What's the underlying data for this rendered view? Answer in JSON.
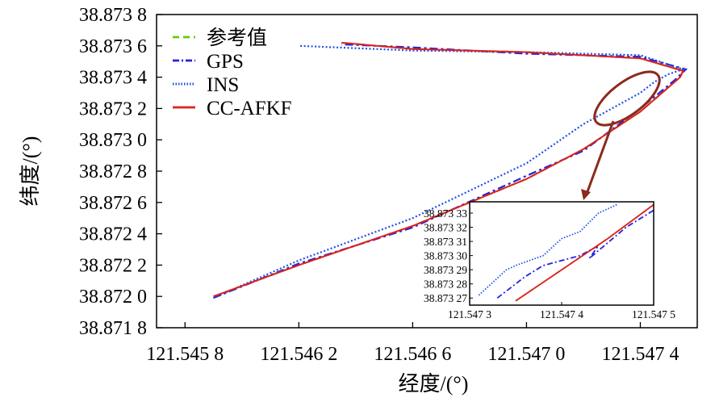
{
  "chart_data": [
    {
      "type": "line",
      "xlabel": "经度/(°)",
      "ylabel": "纬度/(°)",
      "xlim": [
        121.5457,
        121.5476
      ],
      "ylim": [
        38.8718,
        38.8738
      ],
      "xticks": [
        "121.545 8",
        "121.546 2",
        "121.546 6",
        "121.547 0",
        "121.547 4"
      ],
      "xtick_values": [
        121.5458,
        121.5462,
        121.5466,
        121.547,
        121.5474
      ],
      "yticks": [
        "38.871 8",
        "38.872 0",
        "38.872 2",
        "38.872 4",
        "38.872 6",
        "38.872 8",
        "38.873 0",
        "38.873 2",
        "38.873 4",
        "38.873 6",
        "38.873 8"
      ],
      "ytick_values": [
        38.8718,
        38.872,
        38.8722,
        38.8724,
        38.8726,
        38.8728,
        38.873,
        38.8732,
        38.8734,
        38.8736,
        38.8738
      ],
      "grid": false,
      "legend": "top-left",
      "series": [
        {
          "name": "参考值",
          "color": "#66cc00",
          "dash": "dashed",
          "x": [
            121.5459,
            121.5462,
            121.5466,
            121.547,
            121.5472,
            121.5474,
            121.54754,
            121.54755,
            121.5474,
            121.547,
            121.5466,
            121.54635
          ],
          "y": [
            38.872,
            38.8722,
            38.87245,
            38.87275,
            38.87294,
            38.87318,
            38.8734,
            38.87344,
            38.87352,
            38.87356,
            38.87358,
            38.87362
          ]
        },
        {
          "name": "GPS",
          "color": "#2222dd",
          "dash": "dashdot",
          "x": [
            121.5459,
            121.5462,
            121.5466,
            121.547,
            121.5472,
            121.5474,
            121.54752,
            121.54756,
            121.5474,
            121.547,
            121.5466,
            121.54635
          ],
          "y": [
            38.87199,
            38.87221,
            38.87244,
            38.87277,
            38.87293,
            38.8732,
            38.87338,
            38.87345,
            38.87353,
            38.87355,
            38.87359,
            38.87361
          ]
        },
        {
          "name": "INS",
          "color": "#1e50e6",
          "dash": "dotted",
          "x": [
            121.5459,
            121.5462,
            121.5466,
            121.547,
            121.5472,
            121.5474,
            121.54745,
            121.5475,
            121.54755,
            121.5474,
            121.547,
            121.5466,
            121.5462
          ],
          "y": [
            38.87199,
            38.87223,
            38.8725,
            38.87285,
            38.8731,
            38.8733,
            38.87337,
            38.87342,
            38.87345,
            38.87354,
            38.87356,
            38.87357,
            38.8736
          ]
        },
        {
          "name": "CC-AFKF",
          "color": "#e02020",
          "dash": "solid",
          "x": [
            121.5459,
            121.5462,
            121.5466,
            121.547,
            121.5472,
            121.5474,
            121.54754,
            121.54755,
            121.5474,
            121.547,
            121.5466,
            121.54635
          ],
          "y": [
            38.872,
            38.8722,
            38.87245,
            38.87275,
            38.87294,
            38.87318,
            38.8734,
            38.87344,
            38.87352,
            38.87356,
            38.87358,
            38.87362
          ]
        }
      ]
    },
    {
      "type": "line",
      "xticks": [
        "121.547 3",
        "121.547 4",
        "121.547 5"
      ],
      "xtick_values": [
        121.5473,
        121.5474,
        121.5475
      ],
      "xlim": [
        121.5473,
        121.5475
      ],
      "yticks": [
        "38.873 27",
        "38.873 28",
        "38.873 29",
        "38.873 30",
        "38.873 31",
        "38.873 32",
        "38.873 33"
      ],
      "ytick_values": [
        38.87327,
        38.87328,
        38.87329,
        38.8733,
        38.87331,
        38.87332,
        38.87333
      ],
      "ylim": [
        38.873265,
        38.873338
      ],
      "series": [
        {
          "name": "参考值",
          "color": "#66cc00",
          "x": [
            121.54735,
            121.5474,
            121.54745,
            121.5475
          ],
          "y": [
            38.873268,
            38.87329,
            38.873312,
            38.873336
          ]
        },
        {
          "name": "GPS",
          "color": "#2222dd",
          "x": [
            121.54733,
            121.54736,
            121.54738,
            121.54742,
            121.54744,
            121.54743,
            121.54747,
            121.5475
          ],
          "y": [
            38.87327,
            38.873285,
            38.873293,
            38.8733,
            38.873307,
            38.873298,
            38.87332,
            38.873332
          ]
        },
        {
          "name": "INS",
          "color": "#1e50e6",
          "x": [
            121.54731,
            121.54734,
            121.54735,
            121.54738,
            121.5474,
            121.54742,
            121.54744,
            121.54746
          ],
          "y": [
            38.873272,
            38.87329,
            38.873293,
            38.8733,
            38.873312,
            38.873317,
            38.87333,
            38.873336
          ]
        },
        {
          "name": "CC-AFKF",
          "color": "#e02020",
          "x": [
            121.54735,
            121.5474,
            121.54745,
            121.5475
          ],
          "y": [
            38.873268,
            38.87329,
            38.873312,
            38.873336
          ]
        }
      ]
    }
  ]
}
